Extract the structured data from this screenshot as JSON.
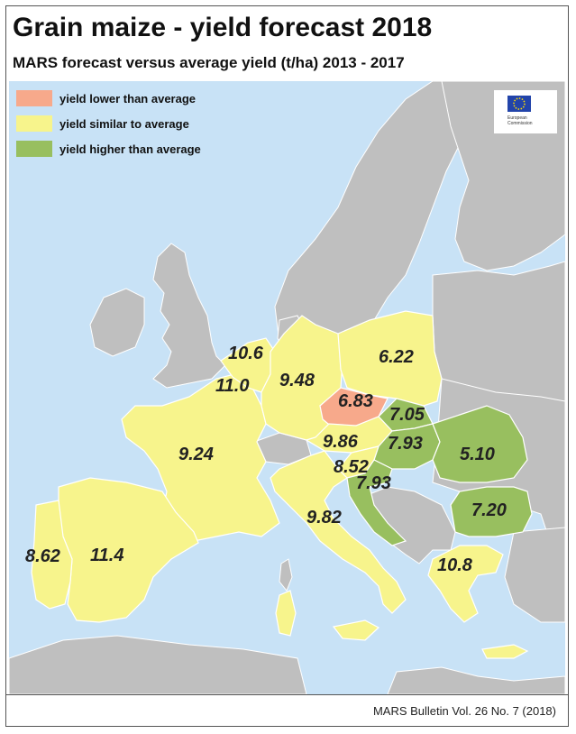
{
  "title": "Grain maize - yield forecast 2018",
  "subtitle": "MARS forecast versus average yield (t/ha) 2013 - 2017",
  "footer": "MARS Bulletin Vol. 26 No. 7 (2018)",
  "logo": {
    "line1": "European",
    "line2": "Commission",
    "icon": "eu-flag-icon"
  },
  "colors": {
    "sea": "#c8e2f6",
    "non_data_land": "#bfbfbf",
    "lower": "#f7a98b",
    "similar": "#f7f48c",
    "higher": "#98bf5f"
  },
  "legend": [
    {
      "label": "yield lower than average",
      "class": "lower"
    },
    {
      "label": "yield similar to average",
      "class": "similar"
    },
    {
      "label": "yield higher than average",
      "class": "higher"
    }
  ],
  "regions": {
    "belgium": {
      "value": "10.6",
      "class": "similar"
    },
    "luxembourg_area": {
      "value": "11.0",
      "class": "similar"
    },
    "germany": {
      "value": "9.48",
      "class": "similar"
    },
    "poland": {
      "value": "6.22",
      "class": "similar"
    },
    "czechia": {
      "value": "6.83",
      "class": "lower"
    },
    "slovakia": {
      "value": "7.05",
      "class": "higher"
    },
    "hungary": {
      "value": "7.93",
      "class": "higher"
    },
    "austria": {
      "value": "9.86",
      "class": "similar"
    },
    "slovenia": {
      "value": "8.52",
      "class": "similar"
    },
    "croatia": {
      "value": "7.93",
      "class": "higher"
    },
    "romania": {
      "value": "5.10",
      "class": "higher"
    },
    "bulgaria": {
      "value": "7.20",
      "class": "higher"
    },
    "france": {
      "value": "9.24",
      "class": "similar"
    },
    "italy": {
      "value": "9.82",
      "class": "similar"
    },
    "portugal": {
      "value": "8.62",
      "class": "similar"
    },
    "spain": {
      "value": "11.4",
      "class": "similar"
    },
    "greece": {
      "value": "10.8",
      "class": "similar"
    }
  }
}
